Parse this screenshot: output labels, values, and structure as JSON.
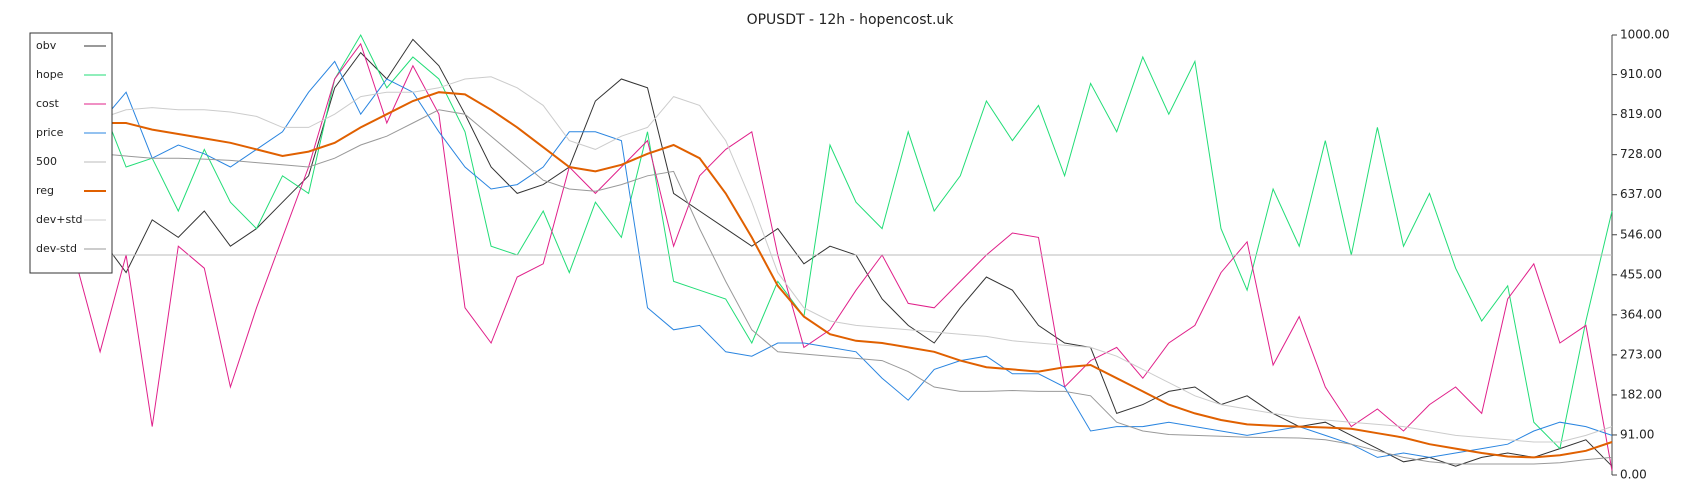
{
  "chart_data": {
    "type": "line",
    "title": "OPUSDT - 12h - hopencost.uk",
    "ylim": [
      0,
      1000
    ],
    "yticks": [
      {
        "value": 0,
        "label": "0.00"
      },
      {
        "value": 91,
        "label": "91.00"
      },
      {
        "value": 182,
        "label": "182.00"
      },
      {
        "value": 273,
        "label": "273.00"
      },
      {
        "value": 364,
        "label": "364.00"
      },
      {
        "value": 455,
        "label": "455.00"
      },
      {
        "value": 546,
        "label": "546.00"
      },
      {
        "value": 637,
        "label": "637.00"
      },
      {
        "value": 728,
        "label": "728.00"
      },
      {
        "value": 819,
        "label": "819.00"
      },
      {
        "value": 910,
        "label": "910.00"
      },
      {
        "value": 1000,
        "label": "1000.00"
      }
    ],
    "legend": "upper left",
    "series": [
      {
        "name": "obv",
        "color": "#333333",
        "values": [
          480,
          540,
          460,
          580,
          540,
          600,
          520,
          560,
          620,
          680,
          880,
          960,
          900,
          990,
          930,
          820,
          700,
          640,
          660,
          700,
          850,
          900,
          880,
          640,
          600,
          560,
          520,
          560,
          480,
          520,
          500,
          400,
          340,
          300,
          380,
          450,
          420,
          340,
          300,
          290,
          140,
          160,
          190,
          200,
          160,
          180,
          140,
          110,
          120,
          90,
          60,
          30,
          40,
          20,
          40,
          50,
          40,
          60,
          80,
          20
        ]
      },
      {
        "name": "hope",
        "color": "#22dd77",
        "values": [
          720,
          850,
          700,
          720,
          600,
          740,
          620,
          560,
          680,
          640,
          900,
          1000,
          880,
          950,
          900,
          780,
          520,
          500,
          600,
          460,
          620,
          540,
          780,
          440,
          420,
          400,
          300,
          440,
          360,
          750,
          620,
          560,
          780,
          600,
          680,
          850,
          760,
          840,
          680,
          890,
          780,
          950,
          820,
          940,
          560,
          420,
          650,
          520,
          760,
          500,
          790,
          520,
          640,
          470,
          350,
          430,
          120,
          60,
          350,
          600
        ]
      },
      {
        "name": "cost",
        "color": "#e0208a",
        "values": [
          500,
          280,
          500,
          110,
          520,
          470,
          200,
          380,
          540,
          700,
          900,
          980,
          800,
          930,
          820,
          380,
          300,
          450,
          480,
          700,
          640,
          700,
          760,
          520,
          680,
          740,
          780,
          500,
          290,
          330,
          420,
          500,
          390,
          380,
          440,
          500,
          550,
          540,
          200,
          260,
          290,
          220,
          300,
          340,
          460,
          530,
          250,
          360,
          200,
          110,
          150,
          100,
          160,
          200,
          140,
          400,
          480,
          300,
          340,
          10
        ]
      },
      {
        "name": "price",
        "color": "#2a85e0",
        "values": [
          680,
          800,
          870,
          720,
          750,
          730,
          700,
          740,
          780,
          870,
          940,
          820,
          900,
          870,
          780,
          700,
          650,
          660,
          700,
          780,
          780,
          760,
          380,
          330,
          340,
          280,
          270,
          300,
          300,
          290,
          280,
          220,
          170,
          240,
          260,
          270,
          230,
          230,
          200,
          100,
          110,
          110,
          120,
          110,
          100,
          90,
          100,
          110,
          90,
          70,
          40,
          50,
          40,
          50,
          60,
          70,
          100,
          120,
          110,
          90
        ]
      },
      {
        "name": "500",
        "color": "#bbbbbb",
        "values": [
          500,
          500,
          500,
          500,
          500,
          500,
          500,
          500,
          500,
          500,
          500,
          500,
          500,
          500,
          500,
          500,
          500,
          500,
          500,
          500,
          500,
          500,
          500,
          500,
          500,
          500,
          500,
          500,
          500,
          500,
          500,
          500,
          500,
          500,
          500,
          500,
          500,
          500,
          500,
          500,
          500,
          500,
          500,
          500,
          500,
          500,
          500,
          500,
          500,
          500,
          500,
          500,
          500,
          500,
          500,
          500,
          500,
          500,
          500,
          500
        ]
      },
      {
        "name": "reg",
        "color": "#e06000",
        "values": [
          800,
          800,
          800,
          785,
          775,
          765,
          755,
          740,
          725,
          735,
          755,
          790,
          820,
          850,
          870,
          865,
          830,
          790,
          745,
          700,
          690,
          705,
          730,
          750,
          720,
          640,
          540,
          430,
          360,
          320,
          305,
          300,
          290,
          280,
          260,
          245,
          240,
          235,
          245,
          250,
          220,
          190,
          160,
          140,
          125,
          115,
          112,
          110,
          108,
          105,
          95,
          85,
          70,
          60,
          50,
          42,
          40,
          45,
          55,
          75
        ]
      },
      {
        "name": "dev+std",
        "color": "#cccccc",
        "values": [
          800,
          810,
          830,
          835,
          830,
          830,
          825,
          815,
          790,
          790,
          820,
          860,
          870,
          870,
          880,
          900,
          905,
          880,
          840,
          760,
          740,
          770,
          790,
          860,
          840,
          760,
          620,
          460,
          380,
          350,
          340,
          335,
          330,
          325,
          320,
          315,
          305,
          300,
          295,
          290,
          270,
          240,
          210,
          180,
          160,
          150,
          140,
          130,
          125,
          120,
          115,
          110,
          100,
          90,
          85,
          80,
          75,
          75,
          90,
          110
        ]
      },
      {
        "name": "dev-std",
        "color": "#999999",
        "values": [
          730,
          730,
          725,
          720,
          720,
          718,
          715,
          710,
          705,
          700,
          720,
          750,
          770,
          800,
          830,
          820,
          770,
          720,
          670,
          650,
          645,
          660,
          680,
          690,
          560,
          440,
          330,
          280,
          275,
          270,
          265,
          260,
          235,
          200,
          190,
          190,
          192,
          190,
          190,
          180,
          120,
          100,
          92,
          90,
          88,
          86,
          85,
          84,
          80,
          70,
          55,
          40,
          30,
          25,
          25,
          25,
          25,
          28,
          35,
          40
        ]
      }
    ]
  }
}
